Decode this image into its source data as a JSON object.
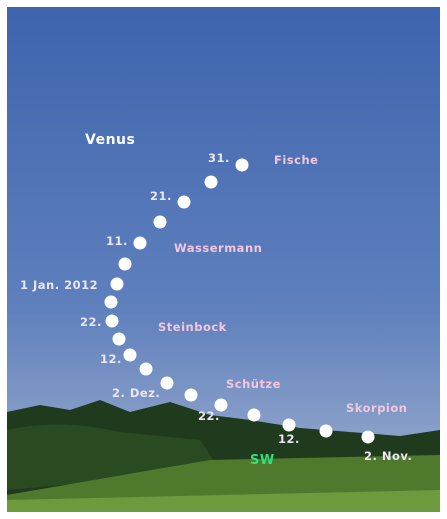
{
  "title": "Venus",
  "direction": "SW",
  "constellations": [
    "Fische",
    "Wassermann",
    "Steinbock",
    "Schütze",
    "Skorpion"
  ],
  "date_labels": [
    "31.",
    "21.",
    "11.",
    "1 Jan. 2012",
    "22.",
    "12.",
    "2. Dez.",
    "22.",
    "12.",
    "2. Nov."
  ]
}
